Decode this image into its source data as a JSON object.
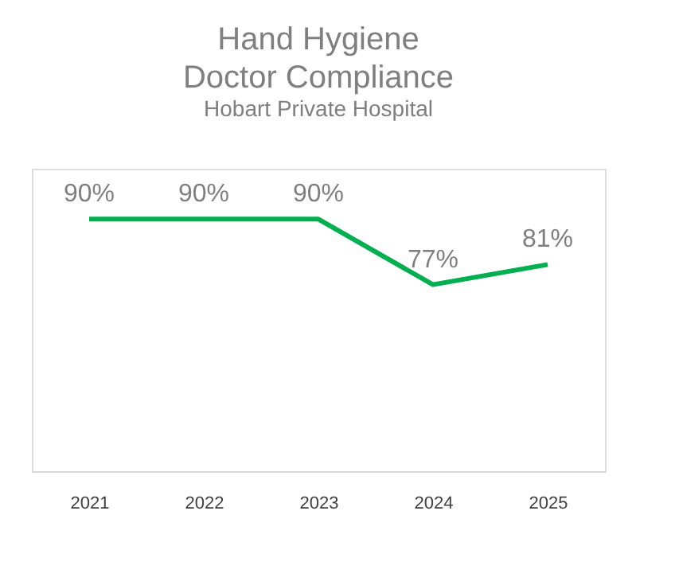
{
  "chart_data": {
    "type": "line",
    "title": "Hand Hygiene\nDoctor Compliance",
    "subtitle": "Hobart Private Hospital",
    "categories": [
      "2021",
      "2022",
      "2023",
      "2024",
      "2025"
    ],
    "series": [
      {
        "color": "#00b050",
        "values": [
          90,
          90,
          90,
          77,
          81
        ],
        "value_labels": [
          "90%",
          "90%",
          "90%",
          "77%",
          "81%"
        ]
      }
    ],
    "ylim": [
      40,
      100
    ],
    "grid": false,
    "marker": "none",
    "line_style": "solid",
    "tick_labels": "x"
  }
}
